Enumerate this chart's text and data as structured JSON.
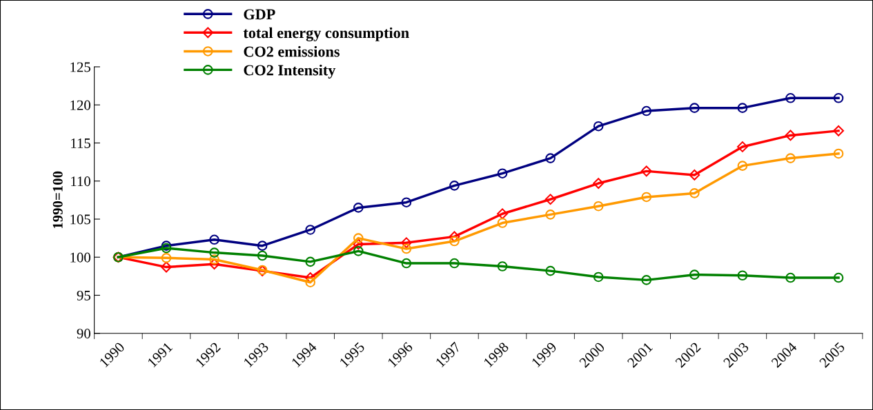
{
  "chart_data": {
    "type": "line",
    "ylabel": "1990=100",
    "categories": [
      "1990",
      "1991",
      "1992",
      "1993",
      "1994",
      "1995",
      "1996",
      "1997",
      "1998",
      "1999",
      "2000",
      "2001",
      "2002",
      "2003",
      "2004",
      "2005"
    ],
    "series": [
      {
        "name": "GDP",
        "color": "#000080",
        "marker": "circle",
        "values": [
          100,
          101.5,
          102.3,
          101.5,
          103.6,
          106.5,
          107.2,
          109.4,
          111.0,
          113.0,
          117.2,
          119.2,
          119.6,
          119.6,
          120.9,
          120.9
        ]
      },
      {
        "name": "total energy consumption",
        "color": "#ff0000",
        "marker": "diamond",
        "values": [
          100,
          98.7,
          99.1,
          98.2,
          97.3,
          101.7,
          101.9,
          102.7,
          105.7,
          107.6,
          109.7,
          111.3,
          110.8,
          114.5,
          116.0,
          116.6
        ]
      },
      {
        "name": "CO2 emissions",
        "color": "#ff9900",
        "marker": "circle",
        "values": [
          100,
          99.9,
          99.7,
          98.3,
          96.7,
          102.5,
          101.1,
          102.1,
          104.5,
          105.6,
          106.7,
          107.9,
          108.4,
          112.0,
          113.0,
          113.6
        ]
      },
      {
        "name": "CO2 Intensity",
        "color": "#008000",
        "marker": "circle",
        "values": [
          100,
          101.2,
          100.6,
          100.2,
          99.4,
          100.8,
          99.2,
          99.2,
          98.8,
          98.2,
          97.4,
          97.0,
          97.7,
          97.6,
          97.3,
          97.3
        ]
      }
    ],
    "ylim": [
      90,
      125
    ],
    "yticks": [
      90,
      95,
      100,
      105,
      110,
      115,
      120,
      125
    ],
    "grid": false,
    "legend": "top left",
    "line_style": "solid"
  }
}
